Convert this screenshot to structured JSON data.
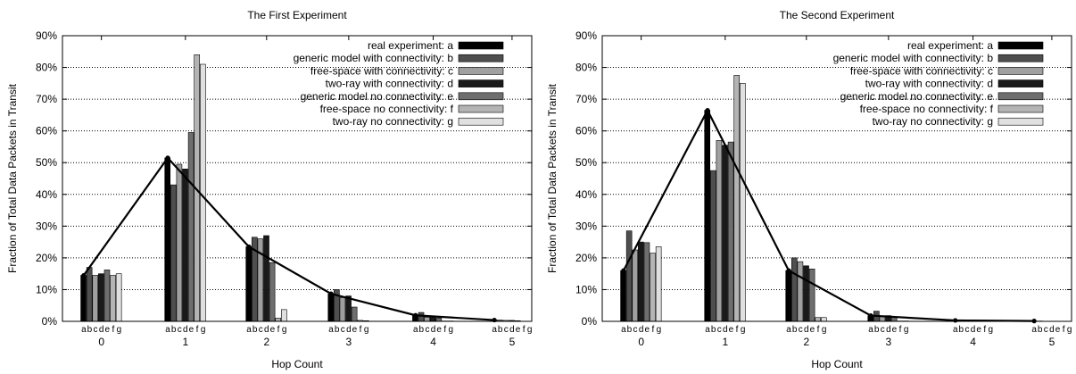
{
  "chart_data": [
    {
      "type": "bar",
      "title": "The First Experiment",
      "xlabel": "Hop Count",
      "ylabel": "Fraction of Total Data Packets in Transit",
      "ylim": [
        0,
        90
      ],
      "yticks": [
        "0%",
        "10%",
        "20%",
        "30%",
        "40%",
        "50%",
        "60%",
        "70%",
        "80%",
        "90%"
      ],
      "categories": [
        "0",
        "1",
        "2",
        "3",
        "4",
        "5"
      ],
      "bar_labels": [
        "a",
        "b",
        "c",
        "d",
        "e",
        "f",
        "g"
      ],
      "legend_position": "top-right",
      "grid": true,
      "series": [
        {
          "name": "real experiment: a",
          "values": [
            14.5,
            51.5,
            23.5,
            8.7,
            1.9,
            0.4
          ]
        },
        {
          "name": "generic model with connectivity: b",
          "values": [
            17.0,
            43.0,
            26.5,
            10.0,
            2.8,
            0.4
          ]
        },
        {
          "name": "free-space with connectivity: c",
          "values": [
            14.5,
            49.5,
            26.0,
            7.5,
            1.3,
            0.3
          ]
        },
        {
          "name": "two-ray with connectivity: d",
          "values": [
            15.0,
            48.0,
            27.0,
            8.0,
            1.6,
            0.3
          ]
        },
        {
          "name": "generic model no connectivity: e",
          "values": [
            16.2,
            59.5,
            18.5,
            4.5,
            1.0,
            0.2
          ]
        },
        {
          "name": "free-space no connectivity: f",
          "values": [
            14.5,
            84.0,
            1.0,
            0.3,
            0.1,
            0.0
          ]
        },
        {
          "name": "two-ray no connectivity: g",
          "values": [
            15.0,
            81.0,
            3.7,
            0.2,
            0.1,
            0.0
          ]
        }
      ],
      "line_series": {
        "values": [
          14.5,
          51.5,
          23.5,
          8.7,
          1.9,
          0.4
        ]
      }
    },
    {
      "type": "bar",
      "title": "The Second Experiment",
      "xlabel": "Hop Count",
      "ylabel": "Fraction of Total Data Packets in Transit",
      "ylim": [
        0,
        90
      ],
      "yticks": [
        "0%",
        "10%",
        "20%",
        "30%",
        "40%",
        "50%",
        "60%",
        "70%",
        "80%",
        "90%"
      ],
      "categories": [
        "0",
        "1",
        "2",
        "3",
        "4",
        "5"
      ],
      "bar_labels": [
        "a",
        "b",
        "c",
        "d",
        "e",
        "f",
        "g"
      ],
      "legend_position": "top-right",
      "grid": true,
      "series": [
        {
          "name": "real experiment: a",
          "values": [
            16.0,
            66.5,
            16.0,
            1.8,
            0.3,
            0.1
          ]
        },
        {
          "name": "generic model with connectivity: b",
          "values": [
            28.5,
            47.5,
            20.0,
            3.2,
            0.5,
            0.1
          ]
        },
        {
          "name": "free-space with connectivity: c",
          "values": [
            22.5,
            57.0,
            18.8,
            1.5,
            0.2,
            0.0
          ]
        },
        {
          "name": "two-ray with connectivity: d",
          "values": [
            25.0,
            55.5,
            17.5,
            1.8,
            0.2,
            0.0
          ]
        },
        {
          "name": "generic model no connectivity: e",
          "values": [
            24.8,
            56.5,
            16.5,
            1.3,
            0.1,
            0.0
          ]
        },
        {
          "name": "free-space no connectivity: f",
          "values": [
            21.5,
            77.5,
            1.2,
            0.1,
            0.0,
            0.0
          ]
        },
        {
          "name": "two-ray no connectivity: g",
          "values": [
            23.5,
            75.0,
            1.2,
            0.1,
            0.0,
            0.0
          ]
        }
      ],
      "line_series": {
        "values": [
          16.0,
          66.5,
          16.0,
          1.8,
          0.3,
          0.1
        ]
      }
    }
  ],
  "colors": {
    "bars": [
      "#000000",
      "#4f4f4f",
      "#a0a0a0",
      "#1a1a1a",
      "#6e6e6e",
      "#b4b4b4",
      "#e0e0e0"
    ],
    "line": "#000000"
  }
}
